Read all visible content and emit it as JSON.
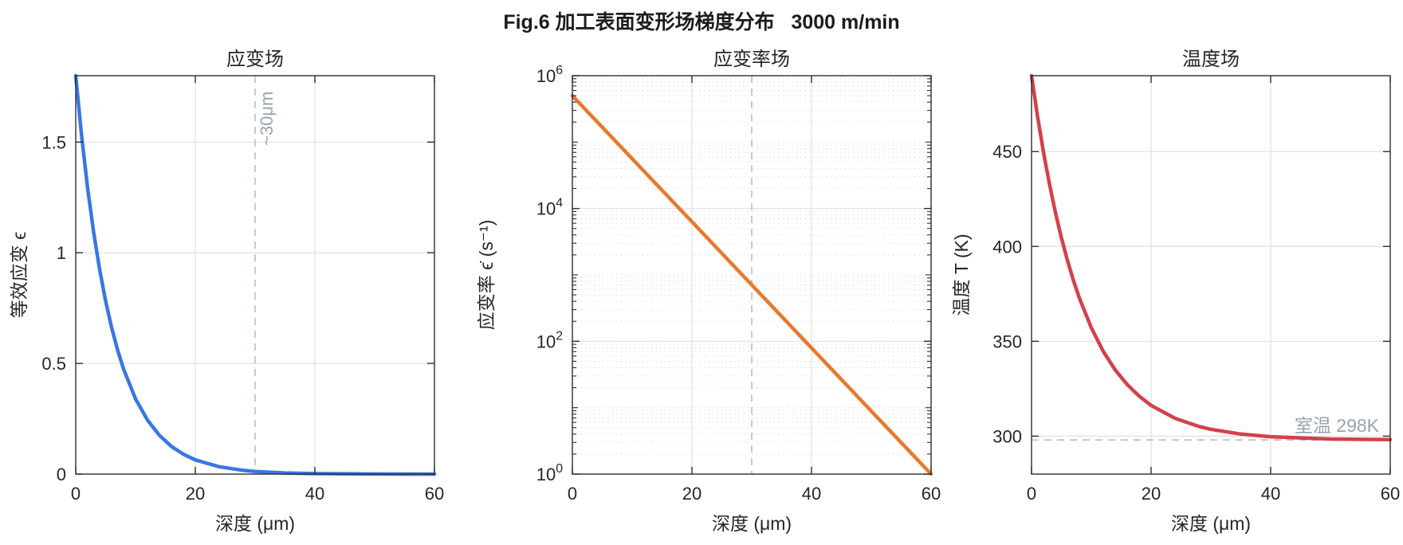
{
  "figure": {
    "title": "Fig.6 加工表面变形场梯度分布   3000 m/min",
    "background": "#ffffff",
    "colors": {
      "axis": "#2e2e2e",
      "text": "#262626",
      "grid": "#e0e0e0",
      "minor_grid": "#c8c8c8",
      "annotation": "#b4bec8",
      "annotation_text": "#98a3af"
    }
  },
  "chart_data": [
    {
      "id": "strain-field",
      "type": "line",
      "title": "应变场",
      "xlabel": "深度 (μm)",
      "ylabel": "等效应变 ϵ",
      "xlim": [
        0,
        60
      ],
      "ylim": [
        0,
        1.8
      ],
      "xticks": [
        0,
        20,
        40,
        60
      ],
      "yticks": [
        0,
        0.5,
        1,
        1.5
      ],
      "yscale": "linear",
      "grid": true,
      "legend": "none",
      "line_color": "#3a76e3",
      "series": [
        {
          "name": "等效应变",
          "x": [
            0,
            1,
            2,
            3,
            4,
            5,
            6,
            7,
            8,
            10,
            12,
            14,
            16,
            18,
            20,
            24,
            28,
            30,
            35,
            40,
            50,
            60
          ],
          "y": [
            1.8,
            1.524,
            1.29,
            1.092,
            0.924,
            0.782,
            0.662,
            0.561,
            0.475,
            0.34,
            0.244,
            0.175,
            0.125,
            0.09,
            0.064,
            0.033,
            0.017,
            0.012,
            0.005,
            0.002,
            0.0004,
            0.0001
          ]
        }
      ],
      "annotations": [
        {
          "type": "vline",
          "x": 30,
          "label": "~30μm",
          "name": "depth-marker"
        }
      ]
    },
    {
      "id": "strain-rate-field",
      "type": "line",
      "title": "应变率场",
      "xlabel": "深度 (μm)",
      "ylabel": "应变率 ϵ̇ (s⁻¹)",
      "xlim": [
        0,
        60
      ],
      "ylim": [
        1,
        1000000
      ],
      "xticks": [
        0,
        20,
        40,
        60
      ],
      "yticks": [
        1,
        100,
        10000,
        1000000
      ],
      "ytick_labels": [
        "10^0",
        "10^2",
        "10^4",
        "10^6"
      ],
      "yscale": "log",
      "grid": true,
      "minor_grid": true,
      "legend": "none",
      "line_color": "#e8782d",
      "series": [
        {
          "name": "应变率",
          "x": [
            0,
            10,
            20,
            30,
            40,
            50,
            60
          ],
          "y": [
            500000,
            56234,
            6310,
            708,
            79.4,
            8.9,
            1
          ]
        }
      ],
      "annotations": [
        {
          "type": "vline",
          "x": 30,
          "label": "",
          "name": "depth-marker"
        }
      ]
    },
    {
      "id": "temperature-field",
      "type": "line",
      "title": "温度场",
      "xlabel": "深度 (μm)",
      "ylabel": "温度 T (K)",
      "xlim": [
        0,
        60
      ],
      "ylim": [
        280,
        490
      ],
      "xticks": [
        0,
        20,
        40,
        60
      ],
      "yticks": [
        300,
        350,
        400,
        450
      ],
      "yscale": "linear",
      "grid": true,
      "legend": "none",
      "line_color": "#d4404b",
      "series": [
        {
          "name": "温度",
          "x": [
            0,
            1,
            2,
            3,
            4,
            5,
            6,
            7,
            8,
            10,
            12,
            14,
            16,
            18,
            20,
            24,
            28,
            30,
            35,
            40,
            50,
            60
          ],
          "y": [
            490,
            468.7,
            449.7,
            432.9,
            417.9,
            404.5,
            392.7,
            382.2,
            372.8,
            357.1,
            344.7,
            334.9,
            327.2,
            321.1,
            316.2,
            309.4,
            305.1,
            303.6,
            301.1,
            299.7,
            298.5,
            298.2
          ]
        }
      ],
      "annotations": [
        {
          "type": "hline",
          "y": 298,
          "label": "室温 298K",
          "name": "room-temp"
        }
      ]
    }
  ]
}
